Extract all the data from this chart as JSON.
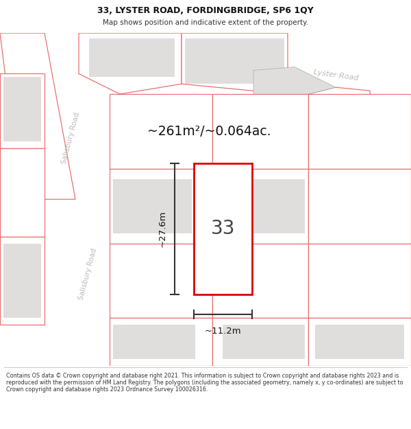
{
  "title": "33, LYSTER ROAD, FORDINGBRIDGE, SP6 1QY",
  "subtitle": "Map shows position and indicative extent of the property.",
  "footer": "Contains OS data © Crown copyright and database right 2021. This information is subject to Crown copyright and database rights 2023 and is reproduced with the permission of HM Land Registry. The polygons (including the associated geometry, namely x, y co-ordinates) are subject to Crown copyright and database rights 2023 Ordnance Survey 100026316.",
  "area_label": "~261m²/~0.064ac.",
  "width_label": "~11.2m",
  "height_label": "~27.6m",
  "number_label": "33",
  "map_bg": "#f5f3f0",
  "road_color": "#ffffff",
  "plot_outline_color": "#e87070",
  "plot_fill": "#ffffff",
  "main_plot_outline": "#dd0000",
  "neighbour_fill": "#e0dedd",
  "dim_line_color": "#333333",
  "road_label_color": "#bbbbbb",
  "lyster_road_label": "Lyster Road",
  "salisbury_road_label_top": "Salisbury Road",
  "salisbury_road_label_bottom": "Salisbury Road",
  "title_fontsize": 9,
  "subtitle_fontsize": 7.5,
  "footer_fontsize": 5.8
}
